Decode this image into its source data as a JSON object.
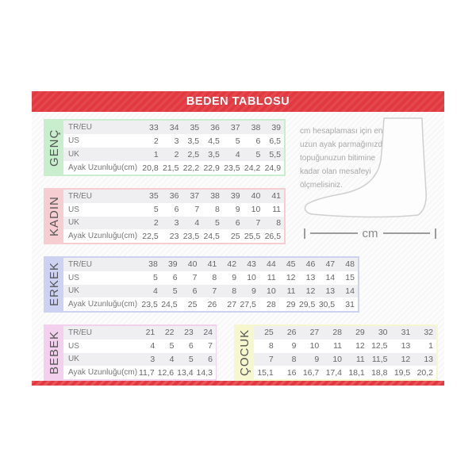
{
  "header": {
    "title": "BEDEN TABLOSU"
  },
  "colors": {
    "band_red": "#e23940",
    "row_alt": "#efeff1",
    "genc": "#c9eecd",
    "kadin": "#f6ced2",
    "erkek": "#cdd2f3",
    "bebek": "#f3d0ee",
    "cocuk": "#f6f6cf"
  },
  "row_labels": [
    "TR/EU",
    "US",
    "UK",
    "Ayak Uzunluğu(cm)"
  ],
  "sections": [
    {
      "id": "genc",
      "name": "GENÇ",
      "color": "#c9eecd",
      "has_row_labels": true,
      "rows": [
        [
          "33",
          "34",
          "35",
          "36",
          "37",
          "38",
          "39"
        ],
        [
          "2",
          "3",
          "3,5",
          "4,5",
          "5",
          "6",
          "6,5"
        ],
        [
          "1",
          "2",
          "2,5",
          "3,5",
          "4",
          "5",
          "5,5"
        ],
        [
          "20,8",
          "21,5",
          "22,2",
          "22,9",
          "23,5",
          "24,2",
          "24,9"
        ]
      ]
    },
    {
      "id": "kadin",
      "name": "KADIN",
      "color": "#f6ced2",
      "has_row_labels": true,
      "rows": [
        [
          "35",
          "36",
          "37",
          "38",
          "39",
          "40",
          "41"
        ],
        [
          "5",
          "6",
          "7",
          "8",
          "9",
          "10",
          "11"
        ],
        [
          "2",
          "3",
          "4",
          "5",
          "6",
          "7",
          "8"
        ],
        [
          "22,5",
          "23",
          "23,5",
          "24,5",
          "25",
          "25,5",
          "26,5"
        ]
      ]
    },
    {
      "id": "erkek",
      "name": "ERKEK",
      "color": "#cdd2f3",
      "has_row_labels": true,
      "rows": [
        [
          "38",
          "39",
          "40",
          "41",
          "42",
          "43",
          "44",
          "45",
          "46",
          "47",
          "48"
        ],
        [
          "5",
          "6",
          "7",
          "8",
          "9",
          "10",
          "11",
          "12",
          "13",
          "14",
          "15"
        ],
        [
          "4",
          "5",
          "6",
          "7",
          "8",
          "9",
          "10",
          "11",
          "12",
          "13",
          "14"
        ],
        [
          "23,5",
          "24,5",
          "25",
          "26",
          "27",
          "27,5",
          "28",
          "29",
          "29,5",
          "30,5",
          "31"
        ]
      ]
    },
    {
      "id": "bebek",
      "name": "BEBEK",
      "color": "#f3d0ee",
      "has_row_labels": true,
      "rows": [
        [
          "21",
          "22",
          "23",
          "24"
        ],
        [
          "4",
          "5",
          "6",
          "7"
        ],
        [
          "3",
          "4",
          "5",
          "6"
        ],
        [
          "11,7",
          "12,6",
          "13,4",
          "14,3"
        ]
      ]
    },
    {
      "id": "cocuk",
      "name": "ÇOCUK",
      "color": "#f6f6cf",
      "has_row_labels": false,
      "rows": [
        [
          "25",
          "26",
          "27",
          "28",
          "29",
          "30",
          "31",
          "32"
        ],
        [
          "8",
          "9",
          "10",
          "11",
          "12",
          "12,5",
          "13",
          "1"
        ],
        [
          "7",
          "8",
          "9",
          "10",
          "11",
          "11,5",
          "12",
          "13"
        ],
        [
          "15,1",
          "16",
          "16,7",
          "17,4",
          "18,1",
          "18,8",
          "19,5",
          "20,2"
        ]
      ]
    }
  ],
  "info": {
    "lines": [
      "cm hesaplaması için en",
      "uzun ayak parmağınızdan",
      "topuğunuzun bitimine",
      "kadar olan mesafeyi",
      "ölçmelisiniz."
    ],
    "measure_label": "cm"
  }
}
